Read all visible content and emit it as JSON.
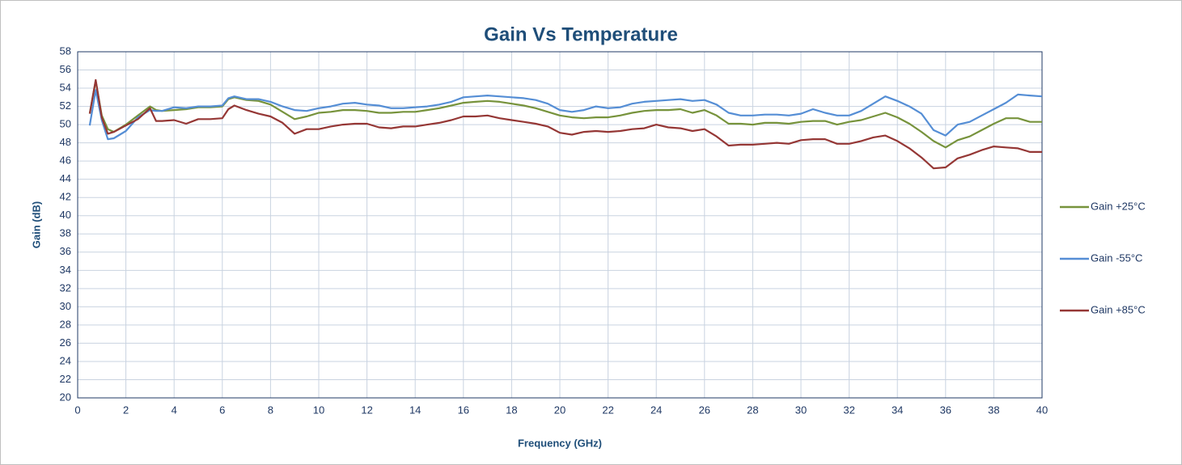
{
  "chart_data": {
    "type": "line",
    "title": "Gain Vs Temperature",
    "x_label": "Frequency (GHz)",
    "y_label": "Gain (dB)",
    "x": [
      0.5,
      0.75,
      1,
      1.25,
      1.5,
      2,
      2.5,
      3,
      3.25,
      3.5,
      4,
      4.5,
      5,
      5.5,
      6,
      6.25,
      6.5,
      7,
      7.5,
      8,
      8.5,
      9,
      9.5,
      10,
      10.5,
      11,
      11.5,
      12,
      12.5,
      13,
      13.5,
      14,
      14.5,
      15,
      15.5,
      16,
      16.5,
      17,
      17.5,
      18,
      18.5,
      19,
      19.5,
      20,
      20.5,
      21,
      21.5,
      22,
      22.5,
      23,
      23.5,
      24,
      24.5,
      25,
      25.5,
      26,
      26.5,
      27,
      27.5,
      28,
      28.5,
      29,
      29.5,
      30,
      30.5,
      31,
      31.5,
      32,
      32.5,
      33,
      33.5,
      34,
      34.5,
      35,
      35.5,
      36,
      36.5,
      37,
      37.5,
      38,
      38.5,
      39,
      39.5,
      40
    ],
    "series": [
      {
        "name": "Gain +25°C",
        "color": "#77933c",
        "values": [
          51.2,
          54.8,
          51,
          49.5,
          49.2,
          50,
          51,
          52,
          51.6,
          51.5,
          51.6,
          51.7,
          51.9,
          51.9,
          52,
          52.8,
          53,
          52.7,
          52.6,
          52.2,
          51.4,
          50.6,
          50.9,
          51.3,
          51.4,
          51.6,
          51.6,
          51.5,
          51.3,
          51.3,
          51.4,
          51.4,
          51.6,
          51.8,
          52.1,
          52.4,
          52.5,
          52.6,
          52.5,
          52.3,
          52.1,
          51.8,
          51.4,
          51,
          50.8,
          50.7,
          50.8,
          50.8,
          51,
          51.3,
          51.5,
          51.6,
          51.6,
          51.7,
          51.3,
          51.6,
          51,
          50.1,
          50.1,
          50,
          50.2,
          50.2,
          50.1,
          50.3,
          50.4,
          50.4,
          50,
          50.3,
          50.5,
          50.9,
          51.3,
          50.8,
          50.1,
          49.2,
          48.2,
          47.5,
          48.3,
          48.7,
          49.4,
          50.1,
          50.7,
          50.7,
          50.3,
          50.3
        ]
      },
      {
        "name": "Gain -55°C",
        "color": "#558ed5",
        "values": [
          49.9,
          53.8,
          50.5,
          48.4,
          48.5,
          49.3,
          50.8,
          51.6,
          51.5,
          51.5,
          51.9,
          51.8,
          52,
          52,
          52.1,
          52.9,
          53.1,
          52.8,
          52.8,
          52.5,
          52,
          51.6,
          51.5,
          51.8,
          52,
          52.3,
          52.4,
          52.2,
          52.1,
          51.8,
          51.8,
          51.9,
          52,
          52.2,
          52.5,
          53,
          53.1,
          53.2,
          53.1,
          53,
          52.9,
          52.7,
          52.3,
          51.6,
          51.4,
          51.6,
          52,
          51.8,
          51.9,
          52.3,
          52.5,
          52.6,
          52.7,
          52.8,
          52.6,
          52.7,
          52.2,
          51.3,
          51,
          51,
          51.1,
          51.1,
          51,
          51.2,
          51.7,
          51.3,
          51,
          51,
          51.5,
          52.3,
          53.1,
          52.6,
          52,
          51.2,
          49.4,
          48.8,
          50,
          50.3,
          51,
          51.7,
          52.4,
          53.3,
          53.2,
          53.1
        ]
      },
      {
        "name": "Gain +85°C",
        "color": "#953735",
        "values": [
          51.2,
          54.9,
          50.8,
          49,
          49.2,
          49.9,
          50.6,
          51.8,
          50.4,
          50.4,
          50.5,
          50.1,
          50.6,
          50.6,
          50.7,
          51.7,
          52.1,
          51.6,
          51.2,
          50.9,
          50.2,
          49,
          49.5,
          49.5,
          49.8,
          50,
          50.1,
          50.1,
          49.7,
          49.6,
          49.8,
          49.8,
          50,
          50.2,
          50.5,
          50.9,
          50.9,
          51,
          50.7,
          50.5,
          50.3,
          50.1,
          49.8,
          49.1,
          48.9,
          49.2,
          49.3,
          49.2,
          49.3,
          49.5,
          49.6,
          50,
          49.7,
          49.6,
          49.3,
          49.5,
          48.7,
          47.7,
          47.8,
          47.8,
          47.9,
          48,
          47.9,
          48.3,
          48.4,
          48.4,
          47.9,
          47.9,
          48.2,
          48.6,
          48.8,
          48.2,
          47.4,
          46.4,
          45.2,
          45.3,
          46.3,
          46.7,
          47.2,
          47.6,
          47.5,
          47.4,
          47,
          47
        ]
      }
    ],
    "xlim": [
      0,
      40
    ],
    "xticks": [
      0,
      2,
      4,
      6,
      8,
      10,
      12,
      14,
      16,
      18,
      20,
      22,
      24,
      26,
      28,
      30,
      32,
      34,
      36,
      38,
      40
    ],
    "ylim": [
      20,
      58
    ],
    "yticks": [
      20,
      22,
      24,
      26,
      28,
      30,
      32,
      34,
      36,
      38,
      40,
      42,
      44,
      46,
      48,
      50,
      52,
      54,
      56,
      58
    ],
    "grid": true,
    "legend": "right"
  }
}
